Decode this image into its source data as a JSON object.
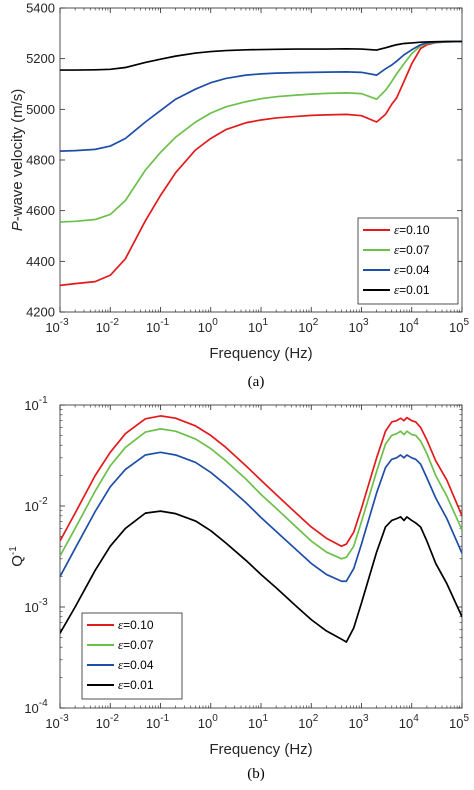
{
  "chart_data": [
    {
      "type": "line",
      "panel_label": "(a)",
      "xlabel": "Frequency (Hz)",
      "ylabel_italic": "P",
      "ylabel_rest": "-wave velocity (m/s)",
      "xscale": "log",
      "xlim": [
        0.001,
        100000
      ],
      "ylim": [
        4200,
        5400
      ],
      "xticks": [
        "-3",
        "-2",
        "-1",
        "0",
        "1",
        "2",
        "3",
        "4",
        "5"
      ],
      "xtick_base": "10",
      "yticks": [
        "4200",
        "4400",
        "4600",
        "4800",
        "5000",
        "5200",
        "5400"
      ],
      "ytick_values": [
        4200,
        4400,
        4600,
        4800,
        5000,
        5200,
        5400
      ],
      "grid": false,
      "legend_position": "lower-right",
      "x": [
        0.001,
        0.002,
        0.005,
        0.01,
        0.02,
        0.05,
        0.1,
        0.2,
        0.5,
        1,
        2,
        5,
        10,
        20,
        50,
        100,
        200,
        500,
        1000,
        2000,
        3000,
        4000,
        5000,
        7000,
        10000,
        15000,
        20000,
        30000,
        50000,
        100000
      ],
      "series": [
        {
          "name": "ε=0.10",
          "legend_prefix": "ε",
          "legend_value": "=0.10",
          "color": "#e31a1c",
          "values": [
            4305,
            4312,
            4320,
            4345,
            4410,
            4560,
            4660,
            4750,
            4840,
            4885,
            4920,
            4947,
            4958,
            4966,
            4972,
            4976,
            4978,
            4980,
            4975,
            4950,
            4980,
            5020,
            5045,
            5110,
            5180,
            5240,
            5255,
            5263,
            5266,
            5268
          ]
        },
        {
          "name": "ε=0.07",
          "legend_prefix": "ε",
          "legend_value": "=0.07",
          "color": "#6cc04a",
          "values": [
            4555,
            4558,
            4565,
            4585,
            4640,
            4760,
            4830,
            4890,
            4950,
            4985,
            5010,
            5030,
            5042,
            5050,
            5056,
            5060,
            5063,
            5065,
            5062,
            5040,
            5075,
            5110,
            5140,
            5180,
            5220,
            5250,
            5260,
            5264,
            5266,
            5268
          ]
        },
        {
          "name": "ε=0.04",
          "legend_prefix": "ε",
          "legend_value": "=0.04",
          "color": "#1f4ea8",
          "values": [
            4835,
            4837,
            4842,
            4855,
            4885,
            4950,
            4995,
            5040,
            5080,
            5105,
            5122,
            5135,
            5140,
            5143,
            5145,
            5146,
            5147,
            5148,
            5146,
            5135,
            5160,
            5175,
            5190,
            5215,
            5235,
            5255,
            5262,
            5265,
            5267,
            5268
          ]
        },
        {
          "name": "ε=0.01",
          "legend_prefix": "ε",
          "legend_value": "=0.01",
          "color": "#000000",
          "values": [
            5155,
            5155,
            5156,
            5158,
            5165,
            5185,
            5198,
            5210,
            5222,
            5228,
            5232,
            5235,
            5236,
            5237,
            5238,
            5238,
            5238,
            5239,
            5238,
            5234,
            5243,
            5250,
            5255,
            5260,
            5262,
            5265,
            5266,
            5267,
            5268,
            5268
          ]
        }
      ]
    },
    {
      "type": "line",
      "panel_label": "(b)",
      "xlabel": "Frequency (Hz)",
      "ylabel_base": "Q",
      "ylabel_sup": "-1",
      "xscale": "log",
      "yscale": "log",
      "xlim": [
        0.001,
        100000
      ],
      "ylim": [
        0.0001,
        0.1
      ],
      "xticks": [
        "-3",
        "-2",
        "-1",
        "0",
        "1",
        "2",
        "3",
        "4",
        "5"
      ],
      "xtick_base": "10",
      "yticks": [
        "-4",
        "-3",
        "-2",
        "-1"
      ],
      "ytick_base": "10",
      "grid": false,
      "legend_position": "lower-left",
      "x": [
        0.001,
        0.002,
        0.005,
        0.01,
        0.02,
        0.05,
        0.1,
        0.2,
        0.5,
        1,
        2,
        5,
        10,
        20,
        50,
        100,
        200,
        400,
        500,
        700,
        1000,
        2000,
        3000,
        4000,
        5000,
        6000,
        7000,
        8000,
        10000,
        12000,
        15000,
        20000,
        30000,
        50000,
        100000
      ],
      "series": [
        {
          "name": "ε=0.10",
          "legend_prefix": "ε",
          "legend_value": "=0.10",
          "color": "#e31a1c",
          "values": [
            0.0045,
            0.0085,
            0.02,
            0.034,
            0.052,
            0.073,
            0.078,
            0.074,
            0.062,
            0.05,
            0.038,
            0.025,
            0.018,
            0.013,
            0.0085,
            0.0062,
            0.0048,
            0.004,
            0.0042,
            0.0055,
            0.0095,
            0.03,
            0.055,
            0.068,
            0.07,
            0.074,
            0.07,
            0.075,
            0.07,
            0.068,
            0.06,
            0.045,
            0.028,
            0.018,
            0.008
          ]
        },
        {
          "name": "ε=0.07",
          "legend_prefix": "ε",
          "legend_value": "=0.07",
          "color": "#6cc04a",
          "values": [
            0.0032,
            0.006,
            0.014,
            0.025,
            0.038,
            0.054,
            0.058,
            0.055,
            0.046,
            0.037,
            0.028,
            0.0185,
            0.013,
            0.0095,
            0.0062,
            0.0045,
            0.0035,
            0.003,
            0.0031,
            0.004,
            0.007,
            0.022,
            0.041,
            0.05,
            0.052,
            0.055,
            0.051,
            0.055,
            0.051,
            0.05,
            0.044,
            0.033,
            0.02,
            0.0125,
            0.0058
          ]
        },
        {
          "name": "ε=0.04",
          "legend_prefix": "ε",
          "legend_value": "=0.04",
          "color": "#1f4ea8",
          "values": [
            0.002,
            0.0038,
            0.0088,
            0.0155,
            0.023,
            0.032,
            0.034,
            0.032,
            0.027,
            0.0215,
            0.0162,
            0.0108,
            0.0077,
            0.0056,
            0.0037,
            0.0027,
            0.0021,
            0.0018,
            0.0018,
            0.0024,
            0.0042,
            0.0135,
            0.024,
            0.029,
            0.03,
            0.032,
            0.03,
            0.032,
            0.03,
            0.029,
            0.026,
            0.019,
            0.012,
            0.0075,
            0.0034
          ]
        },
        {
          "name": "ε=0.01",
          "legend_prefix": "ε",
          "legend_value": "=0.01",
          "color": "#000000",
          "values": [
            0.00055,
            0.001,
            0.0023,
            0.004,
            0.006,
            0.0085,
            0.0089,
            0.0084,
            0.0071,
            0.0057,
            0.0043,
            0.0029,
            0.0021,
            0.00155,
            0.00102,
            0.00075,
            0.00058,
            0.00048,
            0.00045,
            0.00062,
            0.0011,
            0.0035,
            0.0062,
            0.0072,
            0.0075,
            0.0078,
            0.0072,
            0.0078,
            0.0072,
            0.0068,
            0.0062,
            0.0045,
            0.0027,
            0.0017,
            0.0008
          ]
        }
      ]
    }
  ]
}
